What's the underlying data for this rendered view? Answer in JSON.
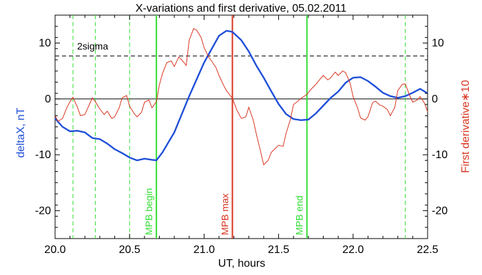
{
  "chart_data": {
    "type": "line",
    "title": "X-variations and first derivative, 05.02.2011",
    "xlabel": "UT, hours",
    "ylabel_left": "deltaX, nT",
    "ylabel_right": "First derivative∗10",
    "xlim": [
      20.0,
      22.5
    ],
    "ylim_left": [
      -25,
      15
    ],
    "ylim_right": [
      -25,
      15
    ],
    "x_ticks": [
      "20.0",
      "20.5",
      "21.0",
      "21.5",
      "22.0",
      "22.5"
    ],
    "y_ticks_left": [
      "-20",
      "-10",
      "0",
      "10"
    ],
    "y_ticks_right": [
      "-20",
      "-10",
      "0",
      "10"
    ],
    "reference_lines": {
      "zero": 0,
      "sigma": {
        "value": 7.7,
        "label": "2sigma"
      }
    },
    "vertical_lines": {
      "dashed_minor": [
        20.12,
        20.27,
        20.5,
        22.35
      ],
      "mpb_begin": {
        "x": 20.68,
        "label": "MPB begin"
      },
      "mpb_max": {
        "x": 21.19,
        "label": "MPB max"
      },
      "mpb_end": {
        "x": 21.69,
        "label": "MPB end"
      }
    },
    "series": [
      {
        "axis": "left",
        "x": [
          20.0,
          20.05,
          20.1,
          20.15,
          20.2,
          20.25,
          20.3,
          20.35,
          20.4,
          20.45,
          20.5,
          20.55,
          20.6,
          20.65,
          20.68,
          20.72,
          20.8,
          20.9,
          21.0,
          21.1,
          21.15,
          21.19,
          21.25,
          21.3,
          21.35,
          21.4,
          21.45,
          21.5,
          21.55,
          21.6,
          21.65,
          21.7,
          21.75,
          21.8,
          21.85,
          21.9,
          21.95,
          22.0,
          22.05,
          22.1,
          22.15,
          22.2,
          22.25,
          22.3,
          22.35,
          22.4,
          22.45,
          22.5
        ],
        "values": [
          -3.5,
          -5.0,
          -5.8,
          -5.7,
          -6.0,
          -7.0,
          -7.2,
          -8.0,
          -9.0,
          -9.7,
          -10.5,
          -11.0,
          -10.7,
          -10.9,
          -11.0,
          -9.6,
          -6.0,
          0.5,
          6.5,
          11.3,
          12.2,
          12.0,
          10.5,
          8.5,
          6.0,
          3.8,
          1.4,
          -0.9,
          -2.7,
          -3.6,
          -3.8,
          -3.7,
          -2.6,
          -1.2,
          0.2,
          1.3,
          2.9,
          3.8,
          3.9,
          3.2,
          2.2,
          1.1,
          0.5,
          0.2,
          0.5,
          1.1,
          1.8,
          1.0
        ]
      },
      {
        "axis": "right",
        "x": [
          20.0,
          20.02,
          20.05,
          20.08,
          20.1,
          20.12,
          20.15,
          20.17,
          20.2,
          20.23,
          20.25,
          20.27,
          20.3,
          20.33,
          20.35,
          20.38,
          20.4,
          20.43,
          20.45,
          20.48,
          20.5,
          20.53,
          20.55,
          20.58,
          20.6,
          20.63,
          20.65,
          20.68,
          20.7,
          20.72,
          20.75,
          20.78,
          20.8,
          20.83,
          20.85,
          20.88,
          20.9,
          20.93,
          20.95,
          20.98,
          21.0,
          21.03,
          21.05,
          21.08,
          21.1,
          21.13,
          21.15,
          21.19,
          21.22,
          21.25,
          21.28,
          21.3,
          21.33,
          21.35,
          21.38,
          21.4,
          21.43,
          21.45,
          21.48,
          21.5,
          21.53,
          21.55,
          21.58,
          21.6,
          21.63,
          21.65,
          21.69,
          21.72,
          21.75,
          21.78,
          21.8,
          21.83,
          21.85,
          21.88,
          21.9,
          21.93,
          21.95,
          21.98,
          22.0,
          22.03,
          22.05,
          22.08,
          22.1,
          22.13,
          22.15,
          22.18,
          22.2,
          22.23,
          22.25,
          22.28,
          22.3,
          22.33,
          22.35,
          22.38,
          22.4,
          22.43,
          22.45,
          22.48,
          22.5
        ],
        "values": [
          -3,
          -4,
          -3.5,
          -1.5,
          -0.5,
          0.3,
          -1.5,
          -3,
          -2.8,
          -1,
          0.2,
          -0.5,
          -1.8,
          -2.8,
          -2.2,
          -3.5,
          -3.2,
          -1.6,
          0.2,
          0.6,
          -1.3,
          -2.6,
          -3.2,
          -2.4,
          -0.6,
          -0.2,
          -1.6,
          -0.5,
          2.5,
          4.5,
          6.5,
          6.8,
          5.8,
          7.5,
          7.0,
          6.0,
          10.5,
          12.6,
          12.3,
          11.0,
          9.2,
          7.5,
          6.8,
          5.6,
          4.2,
          2.5,
          1.5,
          0.1,
          -2.0,
          -3.5,
          -3.2,
          -1.5,
          -3.8,
          -6.2,
          -9.5,
          -11.8,
          -11.0,
          -9.6,
          -8.8,
          -8.3,
          -8.5,
          -6.2,
          -3.6,
          -1.0,
          -0.4,
          0.1,
          0.8,
          1.8,
          2.6,
          3.6,
          4.2,
          3.4,
          3.8,
          4.8,
          4.2,
          5.0,
          4.7,
          2.8,
          0.4,
          -1.6,
          -3.4,
          -3.8,
          -3.2,
          -0.7,
          -0.4,
          -1.1,
          -1.3,
          -1.9,
          -3.0,
          -1.5,
          1.5,
          2.6,
          2.7,
          0.6,
          -0.6,
          -0.2,
          0.4,
          -0.8,
          -2.3
        ]
      }
    ]
  }
}
